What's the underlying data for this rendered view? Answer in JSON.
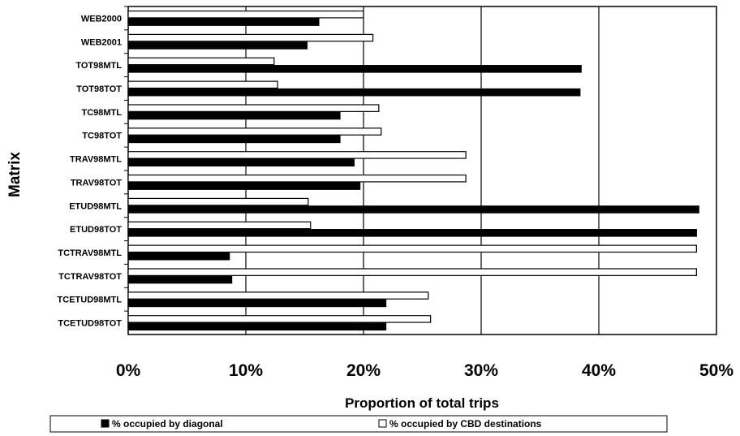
{
  "chart_data": {
    "type": "bar",
    "orientation": "horizontal",
    "categories": [
      "WEB2000",
      "WEB2001",
      "TOT98MTL",
      "TOT98TOT",
      "TC98MTL",
      "TC98TOT",
      "TRAV98MTL",
      "TRAV98TOT",
      "ETUD98MTL",
      "ETUD98TOT",
      "TCTRAV98MTL",
      "TCTRAV98TOT",
      "TCETUD98MTL",
      "TCETUD98TOT"
    ],
    "series": [
      {
        "name": "% occupied by CBD destinations",
        "color": "#ffffff",
        "values": [
          0.2,
          0.208,
          0.124,
          0.127,
          0.213,
          0.215,
          0.287,
          0.287,
          0.153,
          0.155,
          0.483,
          0.483,
          0.255,
          0.257
        ]
      },
      {
        "name": "% occupied by diagonal",
        "color": "#000000",
        "values": [
          0.162,
          0.152,
          0.385,
          0.384,
          0.18,
          0.18,
          0.192,
          0.197,
          0.485,
          0.483,
          0.086,
          0.088,
          0.219,
          0.219
        ]
      }
    ],
    "xlabel": "Proportion of total trips",
    "ylabel": "Matrix",
    "xlim": [
      0,
      0.5
    ],
    "xticks": [
      "0%",
      "10%",
      "20%",
      "30%",
      "40%",
      "50%"
    ],
    "grid": "vertical",
    "legend": "bottom"
  }
}
